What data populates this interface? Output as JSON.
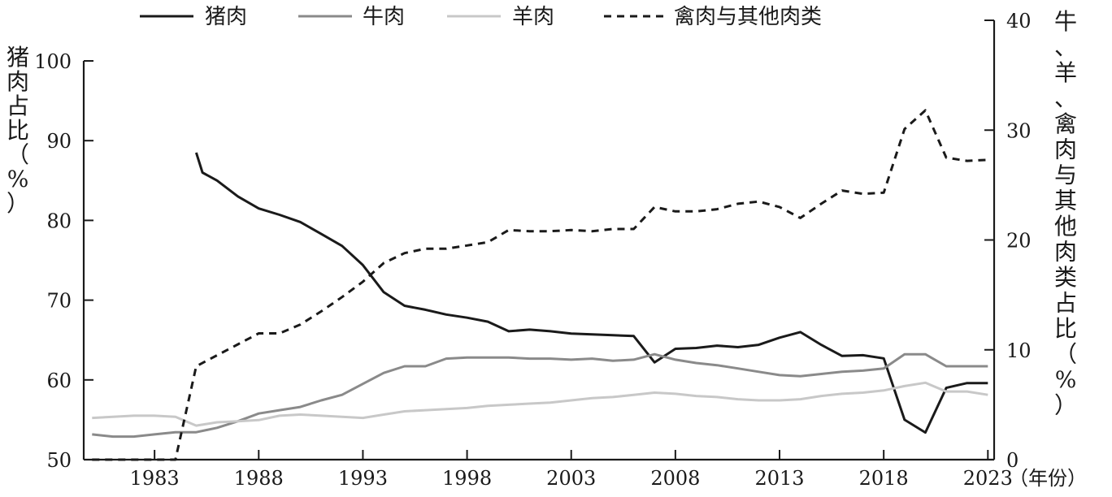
{
  "chart_data": {
    "type": "line",
    "left_axis": {
      "title": "猪肉占比（%）",
      "ylim": [
        50,
        100
      ],
      "ticks": [
        50,
        60,
        70,
        80,
        90,
        100
      ]
    },
    "right_axis": {
      "title": "牛、羊、禽肉与其他肉类占比（%）",
      "ylim": [
        0,
        40
      ],
      "ticks": [
        0,
        10,
        20,
        30,
        40
      ]
    },
    "x_axis": {
      "xlim": [
        1979.6,
        2023.3
      ],
      "ticks": [
        1983,
        1988,
        1993,
        1998,
        2003,
        2008,
        2013,
        2018,
        2023
      ],
      "unit_label": "（年份）"
    },
    "legend_position": "top",
    "grid": false,
    "series": [
      {
        "name": "猪肉",
        "axis": "left",
        "color": "#1a1a1a",
        "dash": "solid",
        "x": [
          1985,
          1985.3,
          1986,
          1987,
          1988,
          1989,
          1990,
          1991,
          1992,
          1993,
          1994,
          1995,
          1996,
          1997,
          1998,
          1999,
          2000,
          2001,
          2002,
          2003,
          2004,
          2005,
          2006,
          2007,
          2008,
          2009,
          2010,
          2011,
          2012,
          2013,
          2014,
          2015,
          2016,
          2017,
          2018,
          2019,
          2020,
          2021,
          2022,
          2023
        ],
        "values": [
          88.5,
          86.0,
          85.0,
          83.0,
          81.5,
          80.7,
          79.8,
          78.3,
          76.8,
          74.4,
          71.0,
          69.3,
          68.8,
          68.2,
          67.8,
          67.3,
          66.1,
          66.3,
          66.1,
          65.8,
          65.7,
          65.6,
          65.5,
          62.2,
          63.9,
          64.0,
          64.3,
          64.1,
          64.4,
          65.3,
          66.0,
          64.4,
          63.0,
          63.1,
          62.7,
          55.0,
          53.4,
          59.0,
          59.6,
          59.6
        ]
      },
      {
        "name": "牛肉",
        "axis": "right",
        "color": "#8a8a8a",
        "dash": "solid",
        "x": [
          1980,
          1981,
          1982,
          1983,
          1984,
          1985,
          1986,
          1987,
          1988,
          1989,
          1990,
          1991,
          1992,
          1993,
          1994,
          1995,
          1996,
          1997,
          1998,
          1999,
          2000,
          2001,
          2002,
          2003,
          2004,
          2005,
          2006,
          2007,
          2008,
          2009,
          2010,
          2011,
          2012,
          2013,
          2014,
          2015,
          2016,
          2017,
          2018,
          2019,
          2020,
          2021,
          2022,
          2023
        ],
        "values": [
          2.3,
          2.1,
          2.1,
          2.3,
          2.5,
          2.5,
          2.9,
          3.5,
          4.2,
          4.5,
          4.8,
          5.4,
          5.9,
          6.9,
          7.9,
          8.5,
          8.5,
          9.2,
          9.3,
          9.3,
          9.3,
          9.2,
          9.2,
          9.1,
          9.2,
          9.0,
          9.1,
          9.6,
          9.1,
          8.8,
          8.6,
          8.3,
          8.0,
          7.7,
          7.6,
          7.8,
          8.0,
          8.1,
          8.3,
          9.6,
          9.6,
          8.5,
          8.5,
          8.5
        ]
      },
      {
        "name": "羊肉",
        "axis": "right",
        "color": "#c8c8c8",
        "dash": "solid",
        "x": [
          1980,
          1981,
          1982,
          1983,
          1984,
          1985,
          1986,
          1987,
          1988,
          1989,
          1990,
          1991,
          1992,
          1993,
          1994,
          1995,
          1996,
          1997,
          1998,
          1999,
          2000,
          2001,
          2002,
          2003,
          2004,
          2005,
          2006,
          2007,
          2008,
          2009,
          2010,
          2011,
          2012,
          2013,
          2014,
          2015,
          2016,
          2017,
          2018,
          2019,
          2020,
          2021,
          2022,
          2023
        ],
        "values": [
          3.8,
          3.9,
          4.0,
          4.0,
          3.9,
          3.1,
          3.4,
          3.5,
          3.6,
          4.0,
          4.1,
          4.0,
          3.9,
          3.8,
          4.1,
          4.4,
          4.5,
          4.6,
          4.7,
          4.9,
          5.0,
          5.1,
          5.2,
          5.4,
          5.6,
          5.7,
          5.9,
          6.1,
          6.0,
          5.8,
          5.7,
          5.5,
          5.4,
          5.4,
          5.5,
          5.8,
          6.0,
          6.1,
          6.3,
          6.7,
          7.0,
          6.2,
          6.2,
          5.9
        ]
      },
      {
        "name": "禽肉与其他肉类",
        "axis": "right",
        "color": "#1a1a1a",
        "dash": "dashed",
        "x": [
          1980,
          1981,
          1982,
          1983,
          1984,
          1985,
          1986,
          1987,
          1988,
          1989,
          1990,
          1991,
          1992,
          1993,
          1994,
          1995,
          1996,
          1997,
          1998,
          1999,
          2000,
          2001,
          2002,
          2003,
          2004,
          2005,
          2006,
          2007,
          2008,
          2009,
          2010,
          2011,
          2012,
          2013,
          2014,
          2015,
          2016,
          2017,
          2018,
          2019,
          2020,
          2021,
          2022,
          2023
        ],
        "values": [
          0.0,
          0.0,
          0.0,
          0.0,
          0.0,
          8.5,
          9.5,
          10.5,
          11.5,
          11.5,
          12.3,
          13.5,
          14.8,
          16.2,
          17.9,
          18.8,
          19.2,
          19.2,
          19.5,
          19.8,
          20.9,
          20.8,
          20.8,
          20.9,
          20.8,
          21.0,
          21.0,
          23.0,
          22.6,
          22.6,
          22.8,
          23.3,
          23.5,
          23.0,
          22.0,
          23.3,
          24.5,
          24.2,
          24.3,
          30.1,
          31.8,
          27.5,
          27.2,
          27.3
        ]
      }
    ]
  }
}
